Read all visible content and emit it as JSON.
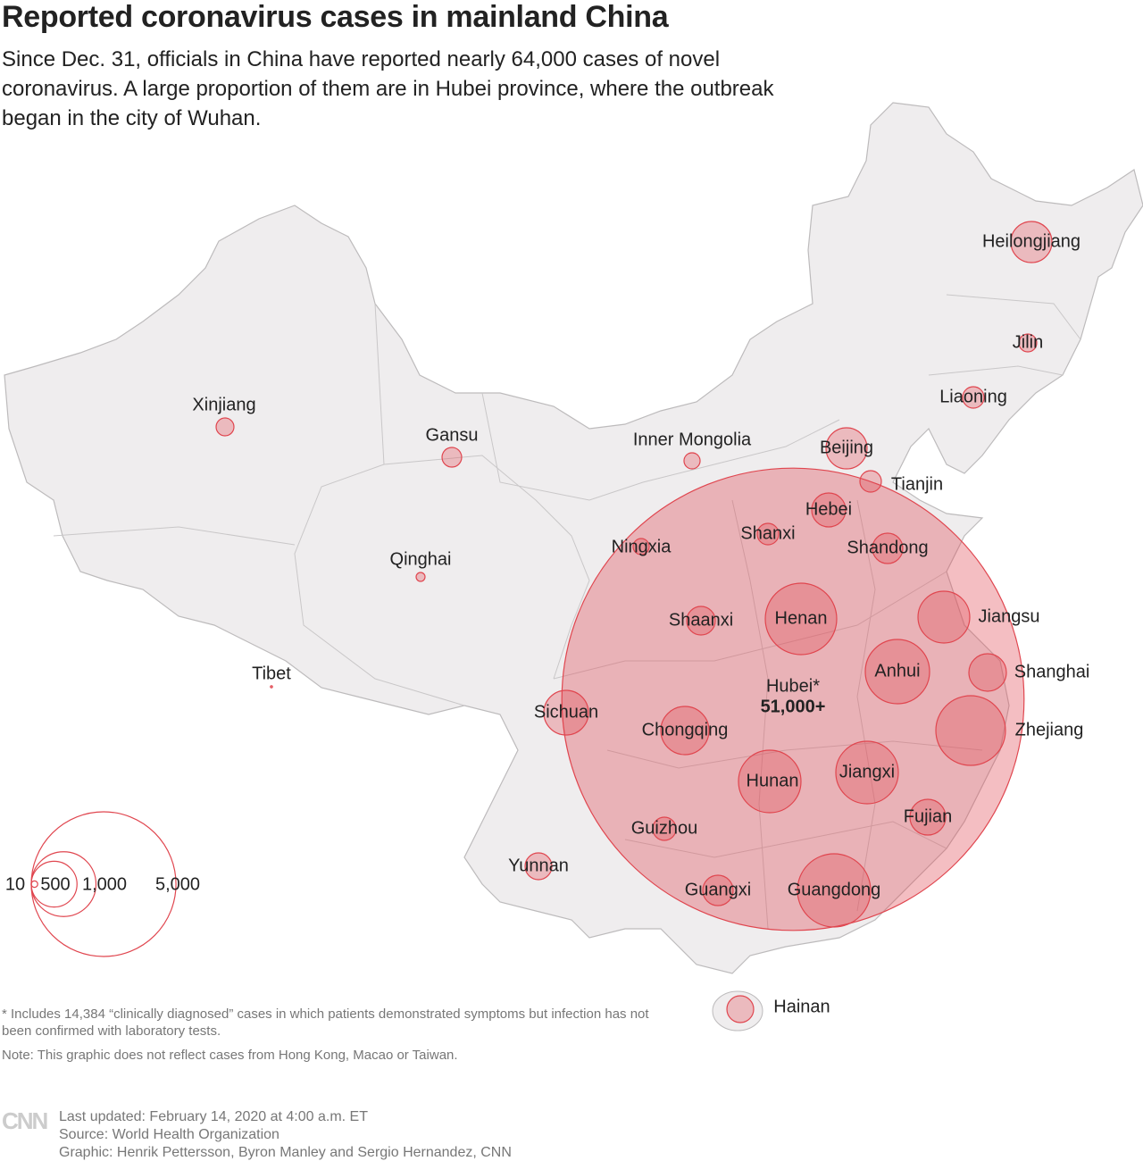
{
  "header": {
    "title": "Reported coronavirus cases in mainland China",
    "subtitle": "Since Dec. 31, officials in China have reported nearly 64,000 cases of novel coronavirus. A large proportion of them are in Hubei province, where the outbreak began in the city of Wuhan."
  },
  "map": {
    "type": "bubble-map",
    "color": "#e0464f",
    "regions": [
      {
        "name": "Hubei*",
        "value": 51000,
        "value_label": "51,000+"
      },
      {
        "name": "Heilongjiang",
        "value": 403
      },
      {
        "name": "Jilin",
        "value": 76
      },
      {
        "name": "Liaoning",
        "value": 110
      },
      {
        "name": "Beijing",
        "value": 403
      },
      {
        "name": "Tianjin",
        "value": 110
      },
      {
        "name": "Hebei",
        "value": 275
      },
      {
        "name": "Shanxi",
        "value": 110
      },
      {
        "name": "Shandong",
        "value": 220
      },
      {
        "name": "Ningxia",
        "value": 62
      },
      {
        "name": "Shaanxi",
        "value": 195
      },
      {
        "name": "Henan",
        "value": 1218
      },
      {
        "name": "Jiangsu",
        "value": 640
      },
      {
        "name": "Anhui",
        "value": 987
      },
      {
        "name": "Shanghai",
        "value": 336
      },
      {
        "name": "Sichuan",
        "value": 476
      },
      {
        "name": "Chongqing",
        "value": 555
      },
      {
        "name": "Zhejiang",
        "value": 1158
      },
      {
        "name": "Hunan",
        "value": 933
      },
      {
        "name": "Jiangxi",
        "value": 933
      },
      {
        "name": "Fujian",
        "value": 305
      },
      {
        "name": "Guizhou",
        "value": 129
      },
      {
        "name": "Yunnan",
        "value": 171
      },
      {
        "name": "Guangxi",
        "value": 220
      },
      {
        "name": "Guangdong",
        "value": 1280
      },
      {
        "name": "Hainan",
        "value": 171
      },
      {
        "name": "Xinjiang",
        "value": 76
      },
      {
        "name": "Gansu",
        "value": 92
      },
      {
        "name": "Inner Mongolia",
        "value": 62
      },
      {
        "name": "Qinghai",
        "value": 19
      },
      {
        "name": "Tibet",
        "value": 1
      }
    ],
    "legend": {
      "sizes": [
        10,
        500,
        {
          "value": 1000,
          "label": "1,000"
        },
        {
          "value": 5000,
          "label": "5,000"
        }
      ]
    }
  },
  "notes": {
    "footnote": "* Includes 14,384 “clinically diagnosed” cases in which patients demonstrated symptoms but infection has not been confirmed with laboratory tests.",
    "note": "Note: This graphic does not reflect cases from Hong Kong, Macao or Taiwan."
  },
  "footer": {
    "logo": "CNN",
    "updated": "Last updated: February 14, 2020 at 4:00 a.m. ET",
    "source": "Source: World Health Organization",
    "credit": "Graphic: Henrik Pettersson, Byron Manley and Sergio Hernandez, CNN"
  }
}
